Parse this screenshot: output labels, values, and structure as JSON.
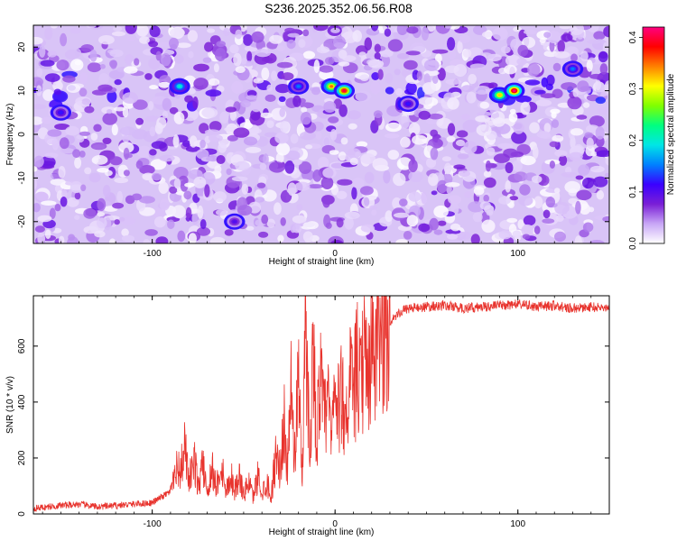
{
  "figure_title": "S236.2025.352.06.56.R08",
  "chart_data": [
    {
      "type": "heatmap",
      "title": "",
      "xlabel": "Height of straight line (km)",
      "ylabel": "Frequency (Hz)",
      "xlim": [
        -165,
        150
      ],
      "ylim": [
        -25,
        25
      ],
      "xticks": [
        -100,
        0,
        100
      ],
      "yticks": [
        -20,
        -10,
        0,
        10,
        20
      ],
      "colorbar": {
        "label": "Normalized spectral amplitude",
        "range": [
          0.0,
          0.42
        ],
        "ticks": [
          "0.0",
          "0.1",
          "0.2",
          "0.3",
          "0.4"
        ],
        "colors": [
          "#ffffff",
          "#c8a6f6",
          "#7a1fd6",
          "#3a00ff",
          "#0080ff",
          "#00e6e6",
          "#00ff80",
          "#80ff00",
          "#ffff00",
          "#ff8000",
          "#ff0000",
          "#ff0080"
        ]
      },
      "hotspots": [
        {
          "x": -85,
          "y": 11,
          "value": 0.2
        },
        {
          "x": -20,
          "y": 11,
          "value": 0.15
        },
        {
          "x": -2,
          "y": 11,
          "value": 0.35
        },
        {
          "x": 5,
          "y": 10,
          "value": 0.4
        },
        {
          "x": 90,
          "y": 9,
          "value": 0.32
        },
        {
          "x": 98,
          "y": 10,
          "value": 0.42
        },
        {
          "x": 130,
          "y": 15,
          "value": 0.15
        },
        {
          "x": -150,
          "y": 5,
          "value": 0.12
        },
        {
          "x": -55,
          "y": -20,
          "value": 0.1
        },
        {
          "x": 40,
          "y": 7,
          "value": 0.12
        }
      ]
    },
    {
      "type": "line",
      "title": "",
      "xlabel": "Height of straight line (km)",
      "ylabel": "SNR (10 * v/v)",
      "xlim": [
        -165,
        150
      ],
      "ylim": [
        0,
        780
      ],
      "xticks": [
        -100,
        0,
        100
      ],
      "yticks": [
        0,
        200,
        400,
        600
      ],
      "series": [
        {
          "color": "#e8332d",
          "x": [
            -165,
            -150,
            -140,
            -130,
            -120,
            -110,
            -100,
            -95,
            -90,
            -87,
            -85,
            -82,
            -80,
            -77,
            -75,
            -72,
            -70,
            -67,
            -65,
            -62,
            -60,
            -57,
            -55,
            -52,
            -50,
            -47,
            -45,
            -42,
            -40,
            -37,
            -35,
            -32,
            -30,
            -28,
            -26,
            -24,
            -22,
            -20,
            -18,
            -16,
            -14,
            -12,
            -10,
            -8,
            -6,
            -4,
            -2,
            0,
            2,
            4,
            6,
            8,
            10,
            12,
            14,
            16,
            18,
            20,
            22,
            25,
            28,
            30,
            35,
            40,
            50,
            60,
            70,
            80,
            90,
            100,
            110,
            120,
            130,
            140,
            150
          ],
          "y": [
            20,
            30,
            35,
            25,
            30,
            35,
            40,
            60,
            80,
            200,
            150,
            250,
            120,
            200,
            110,
            180,
            90,
            170,
            100,
            200,
            80,
            150,
            90,
            140,
            70,
            130,
            60,
            150,
            80,
            120,
            60,
            250,
            150,
            350,
            180,
            450,
            220,
            550,
            160,
            690,
            250,
            600,
            300,
            500,
            350,
            420,
            300,
            450,
            380,
            470,
            350,
            520,
            420,
            560,
            460,
            600,
            520,
            630,
            580,
            660,
            700,
            690,
            720,
            735,
            740,
            745,
            735,
            740,
            745,
            750,
            740,
            745,
            735,
            740,
            735
          ]
        }
      ]
    }
  ]
}
